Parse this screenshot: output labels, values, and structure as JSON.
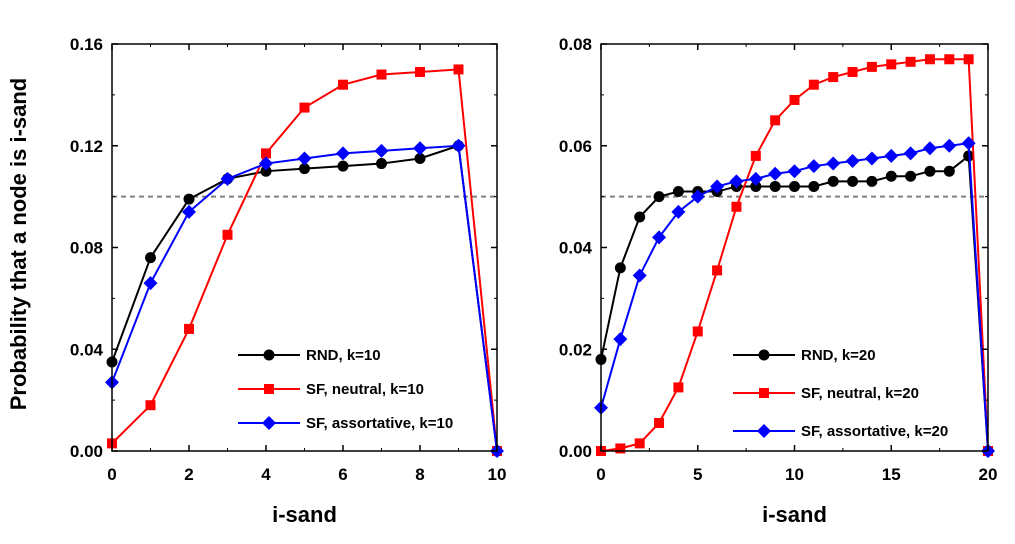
{
  "ylabel": "Probability that a node is i-sand",
  "chart_data": [
    {
      "type": "line",
      "xlabel": "i-sand",
      "xlim": [
        0,
        10
      ],
      "ylim": [
        0,
        0.16
      ],
      "xticks": [
        "0",
        "2",
        "4",
        "6",
        "8",
        "10"
      ],
      "yticks": [
        "0.00",
        "0.04",
        "0.08",
        "0.12",
        "0.16"
      ],
      "reference_line": 0.1,
      "legend_position": "bottom-right",
      "series": [
        {
          "name": "RND, k=10",
          "color": "#000000",
          "marker": "circle",
          "x": [
            0,
            1,
            2,
            3,
            4,
            5,
            6,
            7,
            8,
            9,
            10
          ],
          "y": [
            0.035,
            0.076,
            0.099,
            0.107,
            0.11,
            0.111,
            0.112,
            0.113,
            0.115,
            0.12,
            0.0
          ]
        },
        {
          "name": "SF, neutral, k=10",
          "color": "#ff0000",
          "marker": "square",
          "x": [
            0,
            1,
            2,
            3,
            4,
            5,
            6,
            7,
            8,
            9,
            10
          ],
          "y": [
            0.003,
            0.018,
            0.048,
            0.085,
            0.117,
            0.135,
            0.144,
            0.148,
            0.149,
            0.15,
            0.0
          ]
        },
        {
          "name": "SF, assortative, k=10",
          "color": "#0000ff",
          "marker": "diamond",
          "x": [
            0,
            1,
            2,
            3,
            4,
            5,
            6,
            7,
            8,
            9,
            10
          ],
          "y": [
            0.027,
            0.066,
            0.094,
            0.107,
            0.113,
            0.115,
            0.117,
            0.118,
            0.119,
            0.12,
            0.0
          ]
        }
      ]
    },
    {
      "type": "line",
      "xlabel": "i-sand",
      "xlim": [
        0,
        20
      ],
      "ylim": [
        0,
        0.08
      ],
      "xticks": [
        "0",
        "5",
        "10",
        "15",
        "20"
      ],
      "yticks": [
        "0.00",
        "0.02",
        "0.04",
        "0.06",
        "0.08"
      ],
      "reference_line": 0.05,
      "legend_position": "bottom-right",
      "series": [
        {
          "name": "RND, k=20",
          "color": "#000000",
          "marker": "circle",
          "x": [
            0,
            1,
            2,
            3,
            4,
            5,
            6,
            7,
            8,
            9,
            10,
            11,
            12,
            13,
            14,
            15,
            16,
            17,
            18,
            19,
            20
          ],
          "y": [
            0.018,
            0.036,
            0.046,
            0.05,
            0.051,
            0.051,
            0.051,
            0.052,
            0.052,
            0.052,
            0.052,
            0.052,
            0.053,
            0.053,
            0.053,
            0.054,
            0.054,
            0.055,
            0.055,
            0.058,
            0.0
          ]
        },
        {
          "name": "SF, neutral, k=20",
          "color": "#ff0000",
          "marker": "square",
          "x": [
            0,
            1,
            2,
            3,
            4,
            5,
            6,
            7,
            8,
            9,
            10,
            11,
            12,
            13,
            14,
            15,
            16,
            17,
            18,
            19,
            20
          ],
          "y": [
            0.0,
            0.0005,
            0.0015,
            0.0055,
            0.0125,
            0.0235,
            0.0355,
            0.048,
            0.058,
            0.065,
            0.069,
            0.072,
            0.0735,
            0.0745,
            0.0755,
            0.076,
            0.0765,
            0.077,
            0.077,
            0.077,
            0.0
          ]
        },
        {
          "name": "SF, assortative, k=20",
          "color": "#0000ff",
          "marker": "diamond",
          "x": [
            0,
            1,
            2,
            3,
            4,
            5,
            6,
            7,
            8,
            9,
            10,
            11,
            12,
            13,
            14,
            15,
            16,
            17,
            18,
            19,
            20
          ],
          "y": [
            0.0085,
            0.022,
            0.0345,
            0.042,
            0.047,
            0.05,
            0.052,
            0.053,
            0.0535,
            0.0545,
            0.055,
            0.056,
            0.0565,
            0.057,
            0.0575,
            0.058,
            0.0585,
            0.0595,
            0.06,
            0.0605,
            0.0
          ]
        }
      ]
    }
  ]
}
